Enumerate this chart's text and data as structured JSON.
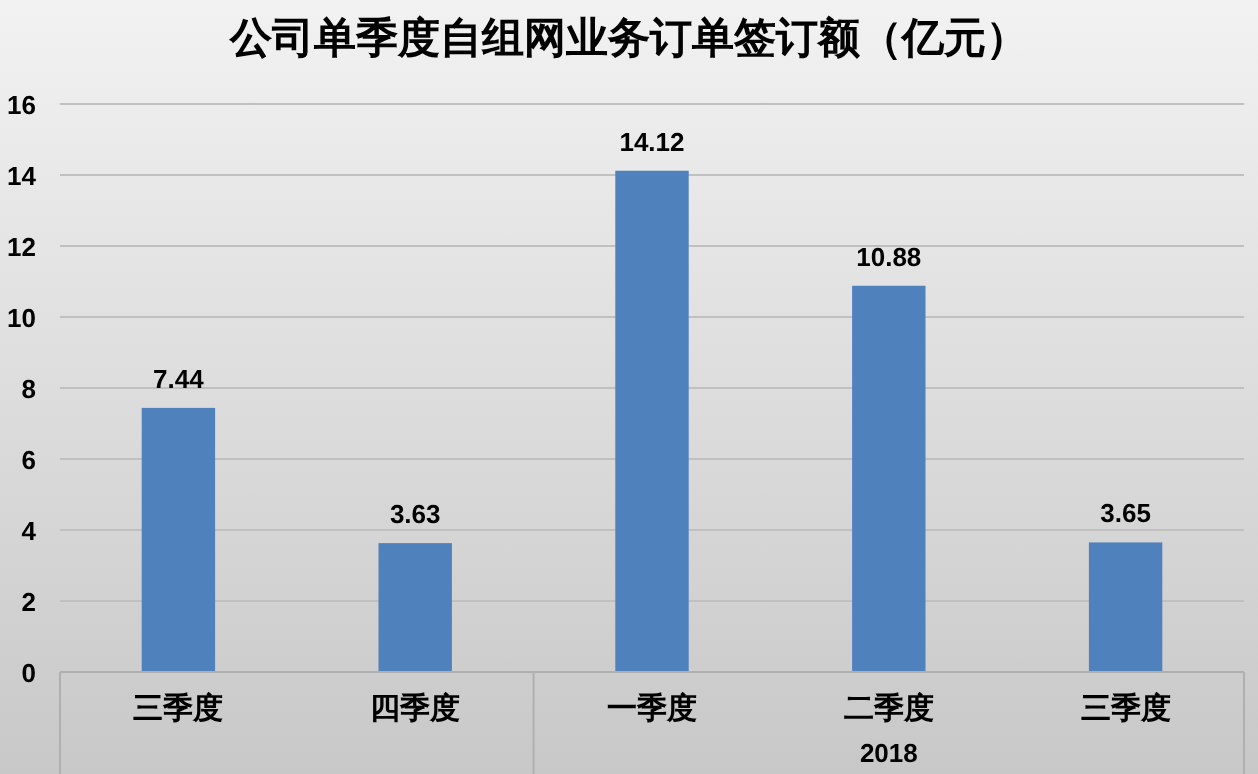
{
  "chart_data": {
    "type": "bar",
    "title": "公司单季度自组网业务订单签订额（亿元）",
    "categories": [
      "三季度",
      "四季度",
      "一季度",
      "二季度",
      "三季度"
    ],
    "values": [
      7.44,
      3.63,
      14.12,
      10.88,
      3.65
    ],
    "color": "#4f81bd",
    "ylim": [
      0,
      16
    ],
    "yticks": [
      0,
      2,
      4,
      6,
      8,
      10,
      12,
      14,
      16
    ],
    "grid": "y",
    "data_labels": true,
    "annotations": [
      "2018"
    ]
  }
}
